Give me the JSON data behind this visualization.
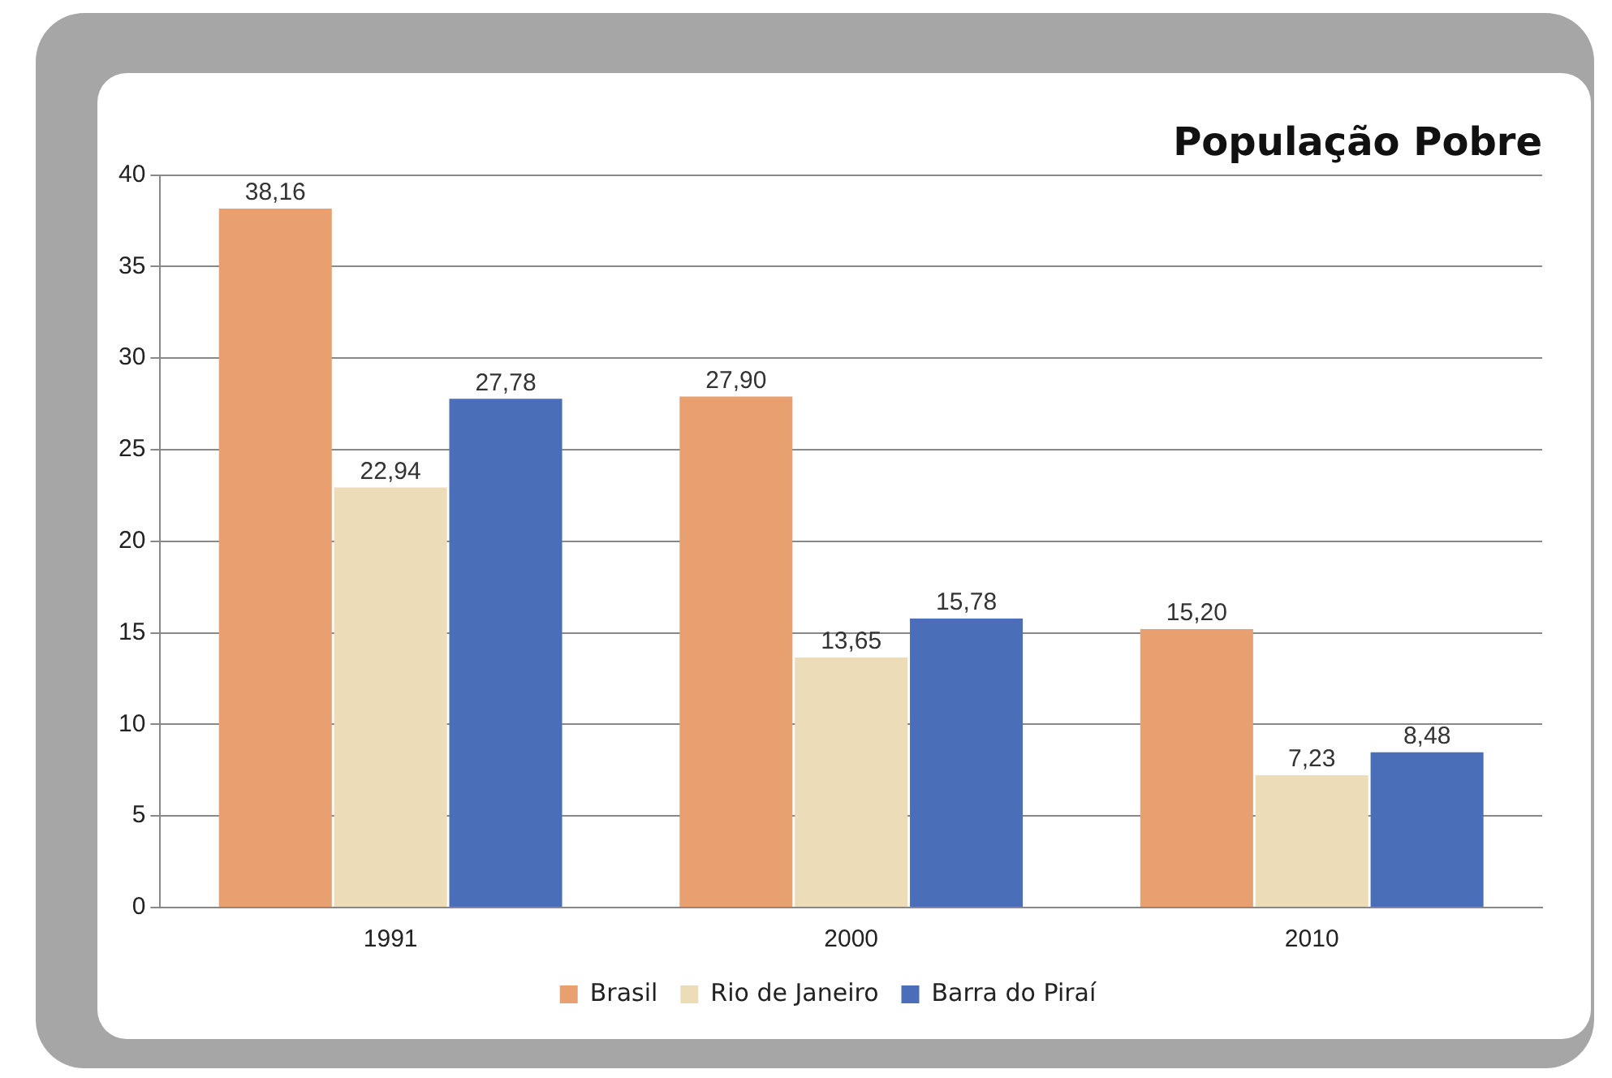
{
  "chart_data": {
    "type": "bar",
    "title": "População Pobre",
    "categories": [
      "1991",
      "2000",
      "2010"
    ],
    "series": [
      {
        "name": "Brasil",
        "color": "#e8a070",
        "values": [
          38.16,
          27.9,
          15.2
        ],
        "value_labels": [
          "38,16",
          "27,90",
          "15,20"
        ]
      },
      {
        "name": "Rio de Janeiro",
        "color": "#ecdcb8",
        "values": [
          22.94,
          13.65,
          7.23
        ],
        "value_labels": [
          "22,94",
          "13,65",
          "7,23"
        ]
      },
      {
        "name": "Barra do Piraí",
        "color": "#4a6fb8",
        "values": [
          27.78,
          15.78,
          8.48
        ],
        "value_labels": [
          "27,78",
          "15,78",
          "8,48"
        ]
      }
    ],
    "ylim": [
      0,
      40
    ],
    "yticks": [
      0,
      5,
      10,
      15,
      20,
      25,
      30,
      35,
      40
    ],
    "grid": "y",
    "legend": "bottom"
  }
}
